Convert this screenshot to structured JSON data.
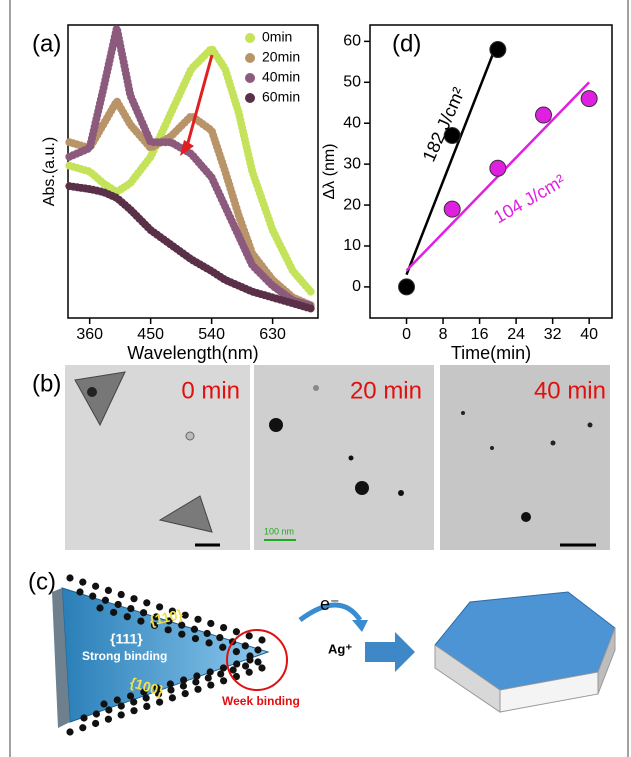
{
  "chart_data": [
    {
      "type": "line",
      "label": "(a)",
      "x_label": "Wavelength(nm)",
      "y_label": "Abs.(a.u.)",
      "x": [
        330,
        360,
        380,
        400,
        420,
        450,
        480,
        510,
        540,
        560,
        580,
        600,
        630,
        660,
        690
      ],
      "xlim": [
        328,
        697
      ],
      "xticks": [
        360,
        450,
        540,
        630
      ],
      "ylim": [
        0,
        1
      ],
      "series": [
        {
          "name": "0min",
          "color": "#c5e35a",
          "values": [
            0.52,
            0.5,
            0.46,
            0.43,
            0.46,
            0.55,
            0.7,
            0.85,
            0.92,
            0.85,
            0.7,
            0.5,
            0.3,
            0.16,
            0.08
          ]
        },
        {
          "name": "20min",
          "color": "#b89468",
          "values": [
            0.6,
            0.58,
            0.66,
            0.74,
            0.66,
            0.58,
            0.62,
            0.69,
            0.64,
            0.5,
            0.35,
            0.22,
            0.13,
            0.07,
            0.04
          ]
        },
        {
          "name": "40min",
          "color": "#8c5a7c",
          "values": [
            0.55,
            0.58,
            0.78,
            0.99,
            0.76,
            0.6,
            0.6,
            0.56,
            0.48,
            0.38,
            0.28,
            0.18,
            0.11,
            0.06,
            0.04
          ]
        },
        {
          "name": "60min",
          "color": "#5a3048",
          "values": [
            0.45,
            0.44,
            0.43,
            0.41,
            0.37,
            0.3,
            0.25,
            0.2,
            0.16,
            0.13,
            0.11,
            0.09,
            0.07,
            0.05,
            0.03
          ]
        }
      ]
    },
    {
      "type": "scatter",
      "label": "(d)",
      "x_label": "Time(min)",
      "y_label": "Δλ (nm)",
      "xlim": [
        -8,
        45
      ],
      "xticks": [
        0,
        8,
        16,
        24,
        32,
        40
      ],
      "ylim": [
        -7.6,
        64
      ],
      "yticks": [
        0,
        10,
        20,
        30,
        40,
        50,
        60
      ],
      "series": [
        {
          "name": "182 J/cm²",
          "color": "#000000",
          "x": [
            0,
            10,
            20
          ],
          "values": [
            0,
            37,
            58
          ],
          "fit_x": [
            0,
            20
          ],
          "fit_y": [
            3,
            60
          ]
        },
        {
          "name": "104 J/cm²",
          "color": "#e020e0",
          "x": [
            10,
            20,
            30,
            40
          ],
          "values": [
            19,
            29,
            42,
            46
          ],
          "fit_x": [
            0,
            40
          ],
          "fit_y": [
            4,
            50
          ]
        }
      ]
    }
  ],
  "panel_b": {
    "label": "(b)",
    "images": [
      "0 min",
      "20 min",
      "40 min"
    ],
    "scale": "100 nm"
  },
  "panel_c": {
    "label": "(c)",
    "facet_top": "{110}",
    "facet_main": "{111}",
    "strong": "Strong binding",
    "facet_bottom": "{100}",
    "weak": "Week binding",
    "electron": "e⁻",
    "ion": "Ag⁺"
  }
}
